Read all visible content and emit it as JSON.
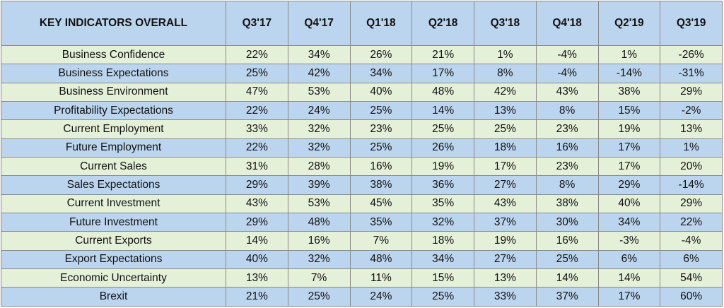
{
  "table": {
    "header_label": "KEY INDICATORS OVERALL",
    "columns": [
      "Q3'17",
      "Q4'17",
      "Q1'18",
      "Q2'18",
      "Q3'18",
      "Q4'18",
      "Q2'19",
      "Q3'19"
    ],
    "colors": {
      "header_bg": "#bcd5ee",
      "row_green": "#e4f0d8",
      "row_blue": "#bcd5ee",
      "border": "#8a8a8a"
    },
    "rows": [
      {
        "label": "Business Confidence",
        "values": [
          "22%",
          "34%",
          "26%",
          "21%",
          "1%",
          "-4%",
          "1%",
          "-26%"
        ]
      },
      {
        "label": "Business Expectations",
        "values": [
          "25%",
          "42%",
          "34%",
          "17%",
          "8%",
          "-4%",
          "-14%",
          "-31%"
        ]
      },
      {
        "label": "Business Environment",
        "values": [
          "47%",
          "53%",
          "40%",
          "48%",
          "42%",
          "43%",
          "38%",
          "29%"
        ]
      },
      {
        "label": "Profitability Expectations",
        "values": [
          "22%",
          "24%",
          "25%",
          "14%",
          "13%",
          "8%",
          "15%",
          "-2%"
        ]
      },
      {
        "label": "Current Employment",
        "values": [
          "33%",
          "32%",
          "23%",
          "25%",
          "25%",
          "23%",
          "19%",
          "13%"
        ]
      },
      {
        "label": "Future Employment",
        "values": [
          "22%",
          "32%",
          "25%",
          "26%",
          "18%",
          "16%",
          "17%",
          "1%"
        ]
      },
      {
        "label": "Current Sales",
        "values": [
          "31%",
          "28%",
          "16%",
          "19%",
          "17%",
          "23%",
          "17%",
          "20%"
        ]
      },
      {
        "label": "Sales Expectations",
        "values": [
          "29%",
          "39%",
          "38%",
          "36%",
          "27%",
          "8%",
          "29%",
          "-14%"
        ]
      },
      {
        "label": "Current Investment",
        "values": [
          "43%",
          "53%",
          "45%",
          "35%",
          "43%",
          "38%",
          "40%",
          "29%"
        ]
      },
      {
        "label": "Future Investment",
        "values": [
          "29%",
          "48%",
          "35%",
          "32%",
          "37%",
          "30%",
          "34%",
          "22%"
        ]
      },
      {
        "label": "Current Exports",
        "values": [
          "14%",
          "16%",
          "7%",
          "18%",
          "19%",
          "16%",
          "-3%",
          "-4%"
        ]
      },
      {
        "label": "Export Expectations",
        "values": [
          "40%",
          "32%",
          "48%",
          "34%",
          "27%",
          "25%",
          "6%",
          "6%"
        ]
      },
      {
        "label": "Economic Uncertainty",
        "values": [
          "13%",
          "7%",
          "11%",
          "15%",
          "13%",
          "14%",
          "14%",
          "54%"
        ]
      },
      {
        "label": "Brexit",
        "values": [
          "21%",
          "25%",
          "24%",
          "25%",
          "33%",
          "37%",
          "17%",
          "60%"
        ]
      }
    ]
  }
}
